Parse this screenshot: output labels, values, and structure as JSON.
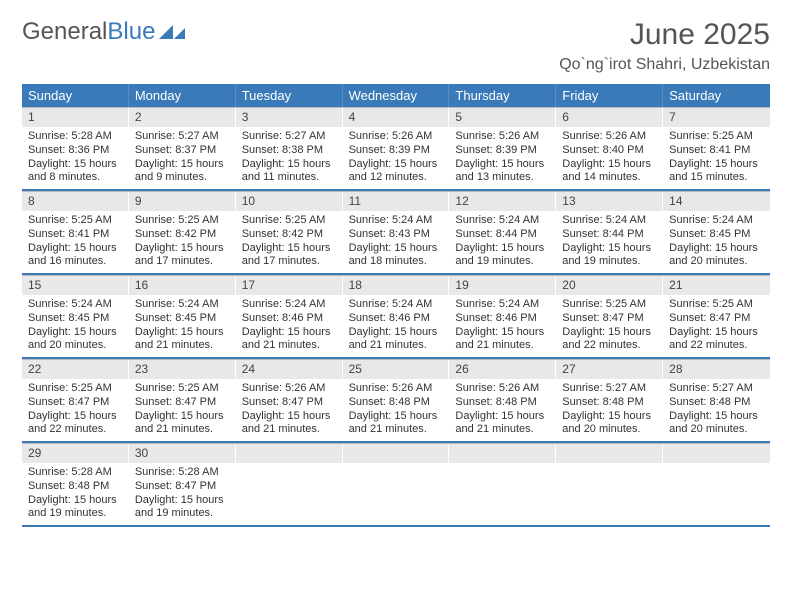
{
  "logo": {
    "text1": "General",
    "text2": "Blue"
  },
  "title": "June 2025",
  "location": "Qo`ng`irot Shahri, Uzbekistan",
  "colors": {
    "header_bg": "#3a7ab8",
    "daynum_bg": "#e8e8e8",
    "text": "#333333",
    "title_text": "#555555"
  },
  "day_names": [
    "Sunday",
    "Monday",
    "Tuesday",
    "Wednesday",
    "Thursday",
    "Friday",
    "Saturday"
  ],
  "weeks": [
    [
      {
        "n": "1",
        "sr": "5:28 AM",
        "ss": "8:36 PM",
        "dl": "15 hours and 8 minutes."
      },
      {
        "n": "2",
        "sr": "5:27 AM",
        "ss": "8:37 PM",
        "dl": "15 hours and 9 minutes."
      },
      {
        "n": "3",
        "sr": "5:27 AM",
        "ss": "8:38 PM",
        "dl": "15 hours and 11 minutes."
      },
      {
        "n": "4",
        "sr": "5:26 AM",
        "ss": "8:39 PM",
        "dl": "15 hours and 12 minutes."
      },
      {
        "n": "5",
        "sr": "5:26 AM",
        "ss": "8:39 PM",
        "dl": "15 hours and 13 minutes."
      },
      {
        "n": "6",
        "sr": "5:26 AM",
        "ss": "8:40 PM",
        "dl": "15 hours and 14 minutes."
      },
      {
        "n": "7",
        "sr": "5:25 AM",
        "ss": "8:41 PM",
        "dl": "15 hours and 15 minutes."
      }
    ],
    [
      {
        "n": "8",
        "sr": "5:25 AM",
        "ss": "8:41 PM",
        "dl": "15 hours and 16 minutes."
      },
      {
        "n": "9",
        "sr": "5:25 AM",
        "ss": "8:42 PM",
        "dl": "15 hours and 17 minutes."
      },
      {
        "n": "10",
        "sr": "5:25 AM",
        "ss": "8:42 PM",
        "dl": "15 hours and 17 minutes."
      },
      {
        "n": "11",
        "sr": "5:24 AM",
        "ss": "8:43 PM",
        "dl": "15 hours and 18 minutes."
      },
      {
        "n": "12",
        "sr": "5:24 AM",
        "ss": "8:44 PM",
        "dl": "15 hours and 19 minutes."
      },
      {
        "n": "13",
        "sr": "5:24 AM",
        "ss": "8:44 PM",
        "dl": "15 hours and 19 minutes."
      },
      {
        "n": "14",
        "sr": "5:24 AM",
        "ss": "8:45 PM",
        "dl": "15 hours and 20 minutes."
      }
    ],
    [
      {
        "n": "15",
        "sr": "5:24 AM",
        "ss": "8:45 PM",
        "dl": "15 hours and 20 minutes."
      },
      {
        "n": "16",
        "sr": "5:24 AM",
        "ss": "8:45 PM",
        "dl": "15 hours and 21 minutes."
      },
      {
        "n": "17",
        "sr": "5:24 AM",
        "ss": "8:46 PM",
        "dl": "15 hours and 21 minutes."
      },
      {
        "n": "18",
        "sr": "5:24 AM",
        "ss": "8:46 PM",
        "dl": "15 hours and 21 minutes."
      },
      {
        "n": "19",
        "sr": "5:24 AM",
        "ss": "8:46 PM",
        "dl": "15 hours and 21 minutes."
      },
      {
        "n": "20",
        "sr": "5:25 AM",
        "ss": "8:47 PM",
        "dl": "15 hours and 22 minutes."
      },
      {
        "n": "21",
        "sr": "5:25 AM",
        "ss": "8:47 PM",
        "dl": "15 hours and 22 minutes."
      }
    ],
    [
      {
        "n": "22",
        "sr": "5:25 AM",
        "ss": "8:47 PM",
        "dl": "15 hours and 22 minutes."
      },
      {
        "n": "23",
        "sr": "5:25 AM",
        "ss": "8:47 PM",
        "dl": "15 hours and 21 minutes."
      },
      {
        "n": "24",
        "sr": "5:26 AM",
        "ss": "8:47 PM",
        "dl": "15 hours and 21 minutes."
      },
      {
        "n": "25",
        "sr": "5:26 AM",
        "ss": "8:48 PM",
        "dl": "15 hours and 21 minutes."
      },
      {
        "n": "26",
        "sr": "5:26 AM",
        "ss": "8:48 PM",
        "dl": "15 hours and 21 minutes."
      },
      {
        "n": "27",
        "sr": "5:27 AM",
        "ss": "8:48 PM",
        "dl": "15 hours and 20 minutes."
      },
      {
        "n": "28",
        "sr": "5:27 AM",
        "ss": "8:48 PM",
        "dl": "15 hours and 20 minutes."
      }
    ],
    [
      {
        "n": "29",
        "sr": "5:28 AM",
        "ss": "8:48 PM",
        "dl": "15 hours and 19 minutes."
      },
      {
        "n": "30",
        "sr": "5:28 AM",
        "ss": "8:47 PM",
        "dl": "15 hours and 19 minutes."
      },
      {
        "empty": true
      },
      {
        "empty": true
      },
      {
        "empty": true
      },
      {
        "empty": true
      },
      {
        "empty": true
      }
    ]
  ],
  "labels": {
    "sunrise": "Sunrise: ",
    "sunset": "Sunset: ",
    "daylight": "Daylight: "
  }
}
